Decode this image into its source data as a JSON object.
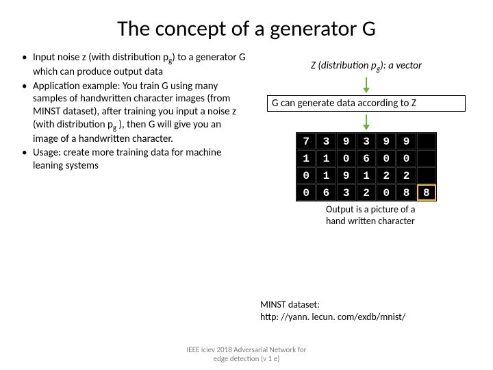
{
  "title": "The concept of a generator G",
  "bullets": [
    "Input noise z (with distribution p<sub class=\"sub\">g</sub>) to a generator G which can produce output data",
    "Application example: You train G using many samples of handwritten character images (from MINST dataset), after training you input a noise z (with distribution p<sub class=\"sub\">g</sub> ), then G will give you an image of a handwritten character.",
    "Usage: create more training data for machine leaning systems"
  ],
  "right": {
    "z_label_prefix": "Z (distribution p",
    "z_label_sub": "g",
    "z_label_suffix": "): a vector",
    "g_box": "G  can generate data according to Z",
    "output_caption_l1": "Output is a picture of a",
    "output_caption_l2": "hand written character",
    "digits": [
      [
        "7",
        "3",
        "9",
        "3",
        "9",
        "9",
        ""
      ],
      [
        "1",
        "1",
        "0",
        "6",
        "0",
        "0",
        ""
      ],
      [
        "0",
        "1",
        "9",
        "1",
        "2",
        "2",
        ""
      ],
      [
        "0",
        "6",
        "3",
        "2",
        "0",
        "8",
        "8"
      ]
    ],
    "highlight": {
      "row": 3,
      "col": 6
    }
  },
  "minst": {
    "l1": "MINST dataset:",
    "l2": "http: //yann. lecun. com/exdb/mnist/"
  },
  "footer": {
    "l1": "IEEE iciev 2018 Adversarial Network for",
    "l2": "edge detection (v 1 e)"
  },
  "colors": {
    "arrow": "#70ad47",
    "highlight": "#ffcc00",
    "footer_text": "#7f7f7f"
  }
}
